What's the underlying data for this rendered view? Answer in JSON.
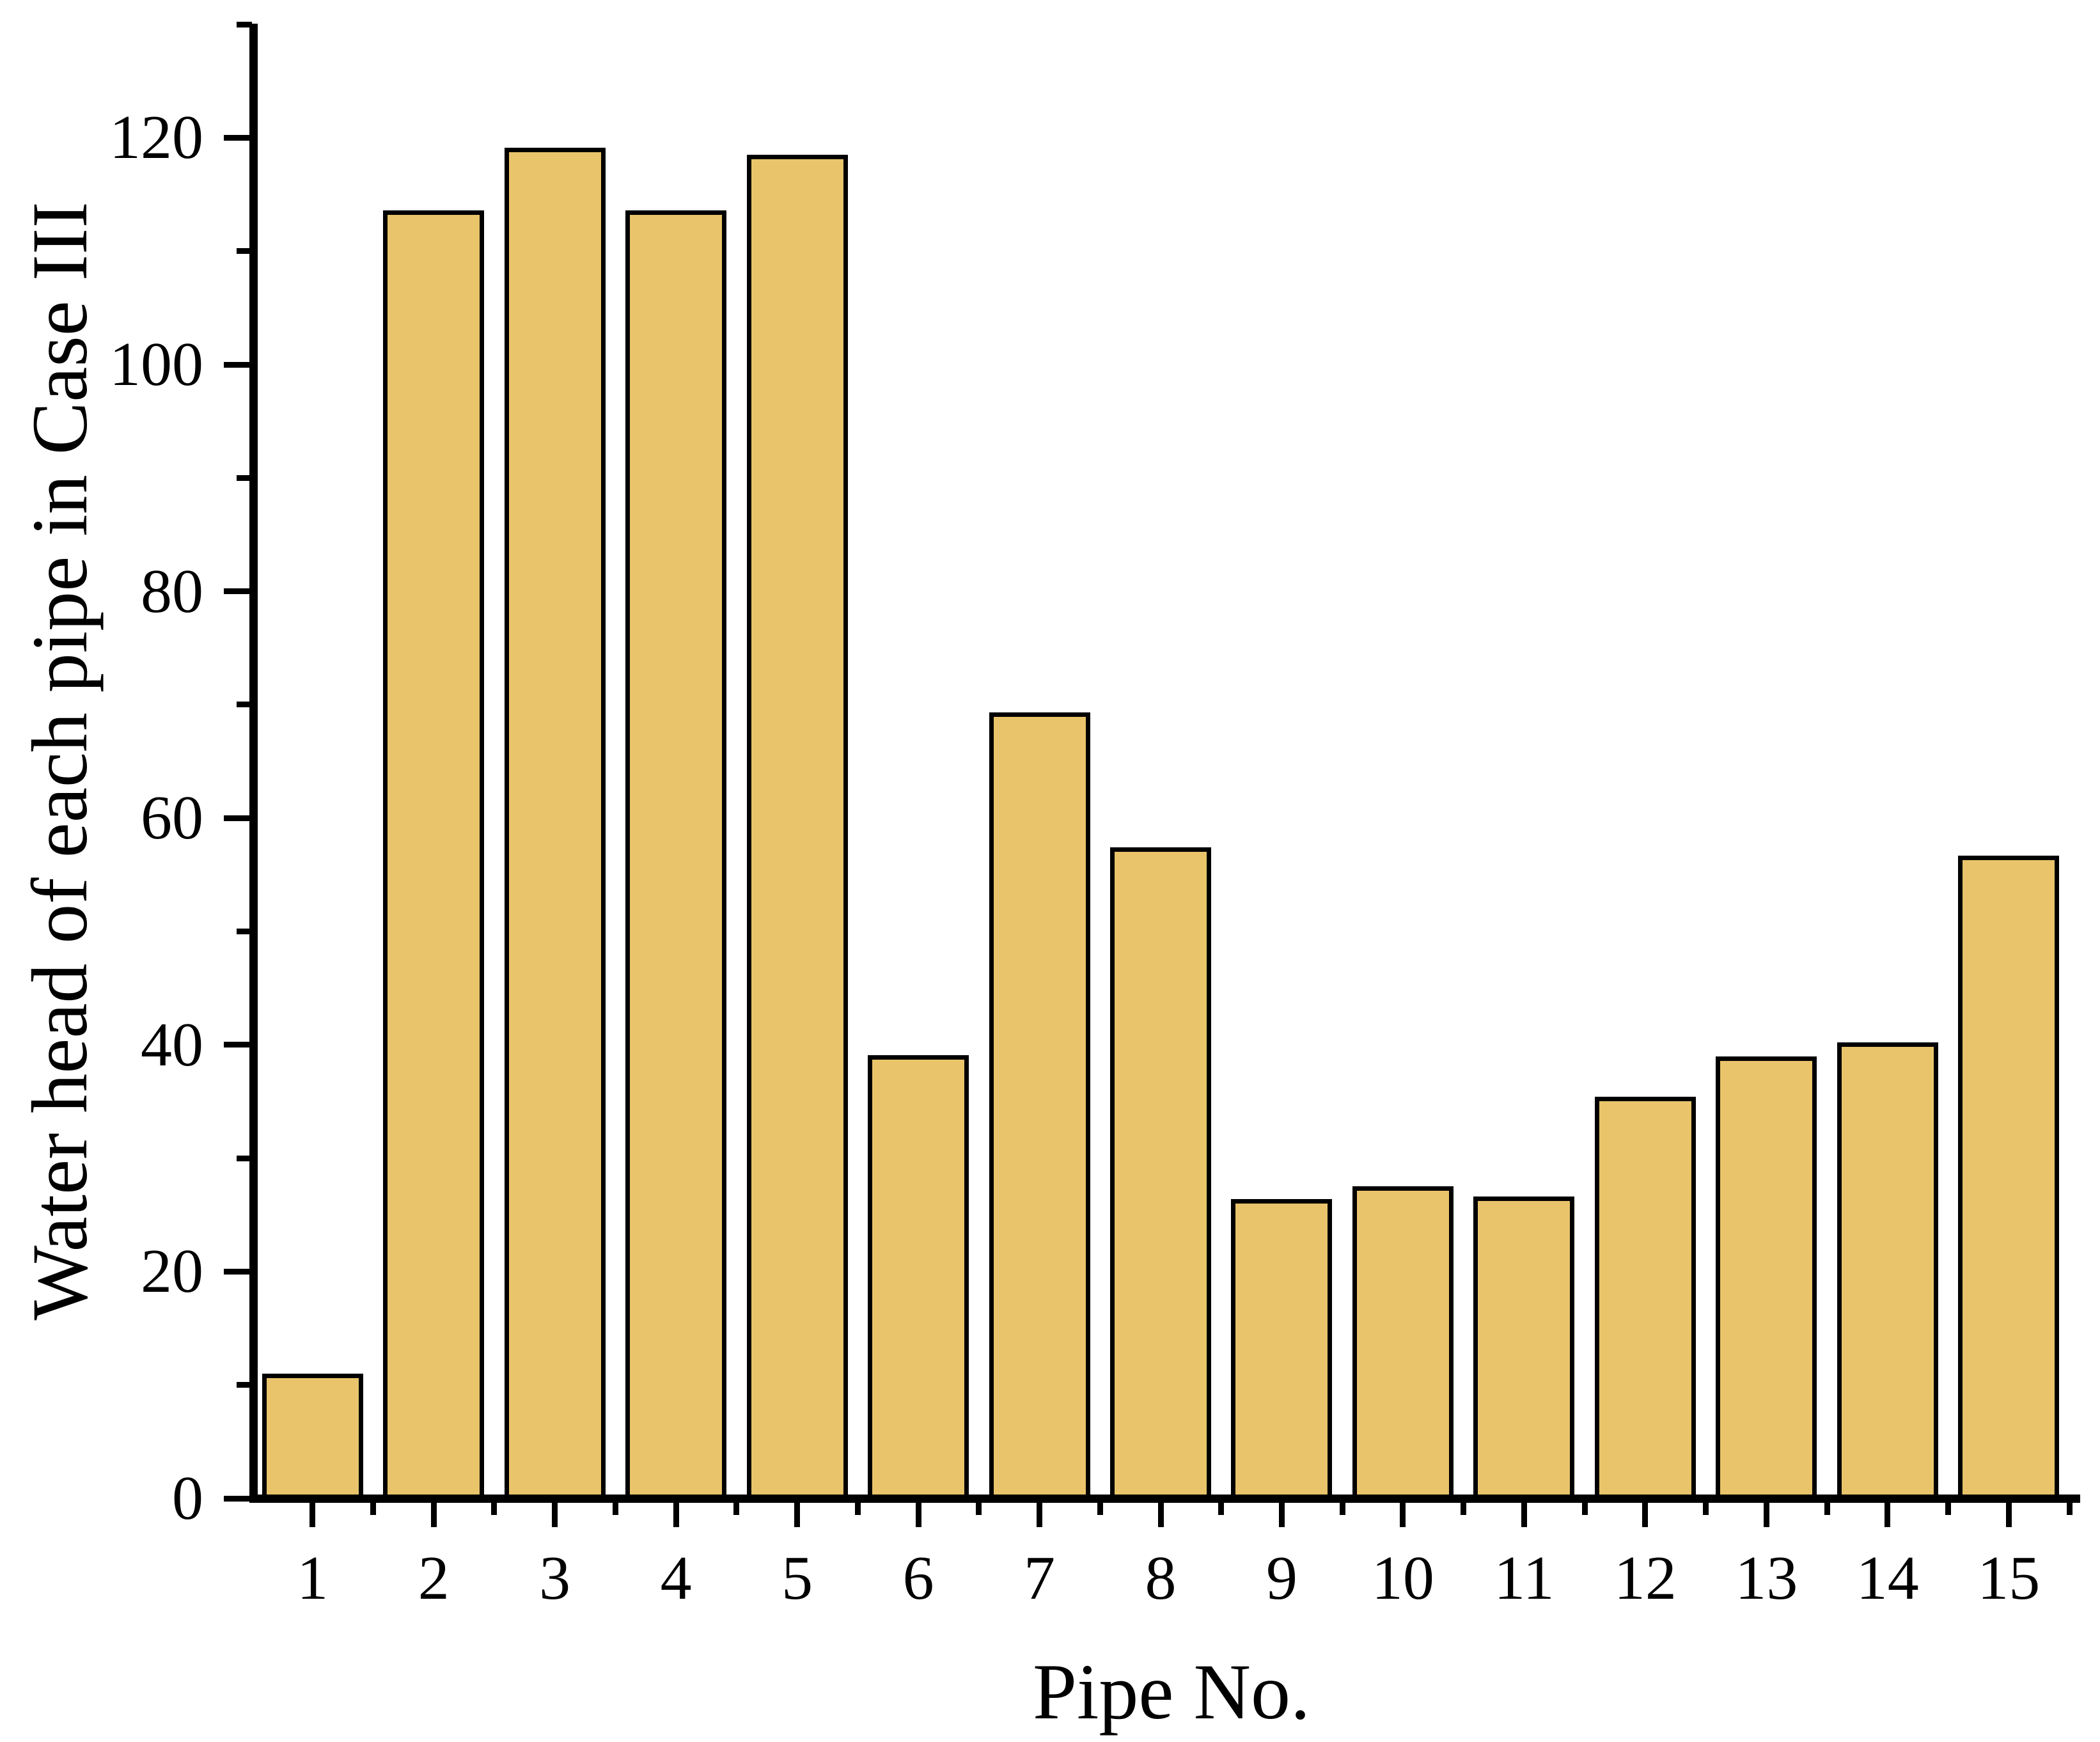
{
  "figure": {
    "background_color": "#FFFFFF",
    "axis_color": "#000000"
  },
  "chart_data": {
    "type": "bar",
    "title": "",
    "xlabel": "Pipe No.",
    "ylabel": "Water head of each pipe in Case III",
    "categories": [
      "1",
      "2",
      "3",
      "4",
      "5",
      "6",
      "7",
      "8",
      "9",
      "10",
      "11",
      "12",
      "13",
      "14",
      "15"
    ],
    "values": [
      11.0,
      113.6,
      119.1,
      113.6,
      118.5,
      39.1,
      69.3,
      57.4,
      26.4,
      27.5,
      26.6,
      35.4,
      39.0,
      40.2,
      56.7
    ],
    "ylim": [
      0,
      130
    ],
    "y_major_ticks": [
      0,
      20,
      40,
      60,
      80,
      100,
      120
    ],
    "y_minor_ticks": [
      10,
      30,
      50,
      70,
      90,
      110,
      130
    ],
    "x_tick_style": "major ticks at category centers, short ticks at category boundaries",
    "grid": false,
    "legend": null,
    "bar_fill_color": "#E9C46B",
    "bar_edge_color": "#000000"
  }
}
